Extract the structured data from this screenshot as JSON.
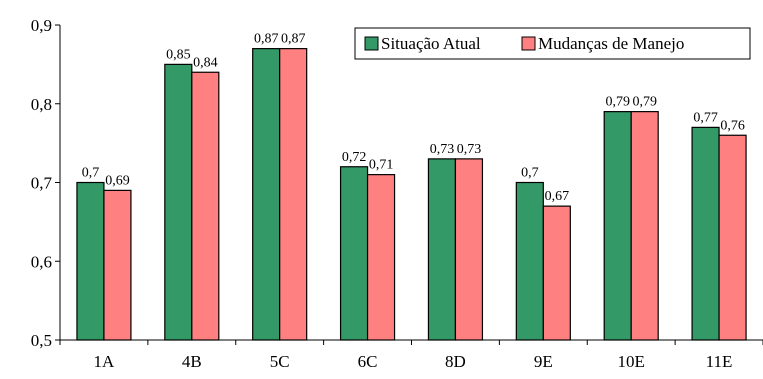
{
  "chart_data": {
    "type": "bar",
    "categories": [
      "1A",
      "4B",
      "5C",
      "6C",
      "8D",
      "9E",
      "10E",
      "11E"
    ],
    "series": [
      {
        "name": "Situação Atual",
        "values": [
          0.7,
          0.85,
          0.87,
          0.72,
          0.73,
          0.7,
          0.79,
          0.77
        ],
        "labels": [
          "0,7",
          "0,85",
          "0,87",
          "0,72",
          "0,73",
          "0,7",
          "0,79",
          "0,77"
        ],
        "color": "#339966"
      },
      {
        "name": "Mudanças de Manejo",
        "values": [
          0.69,
          0.84,
          0.87,
          0.71,
          0.73,
          0.67,
          0.79,
          0.76
        ],
        "labels": [
          "0,69",
          "0,84",
          "0,87",
          "0,71",
          "0,73",
          "0,67",
          "0,79",
          "0,76"
        ],
        "color": "#ff8080"
      }
    ],
    "ylim": [
      0.5,
      0.9
    ],
    "yticks": [
      {
        "value": 0.5,
        "label": "0,5"
      },
      {
        "value": 0.6,
        "label": "0,6"
      },
      {
        "value": 0.7,
        "label": "0,7"
      },
      {
        "value": 0.8,
        "label": "0,8"
      },
      {
        "value": 0.9,
        "label": "0,9"
      }
    ],
    "grid": false,
    "legend_position": "top-right",
    "title": "",
    "xlabel": "",
    "ylabel": ""
  }
}
